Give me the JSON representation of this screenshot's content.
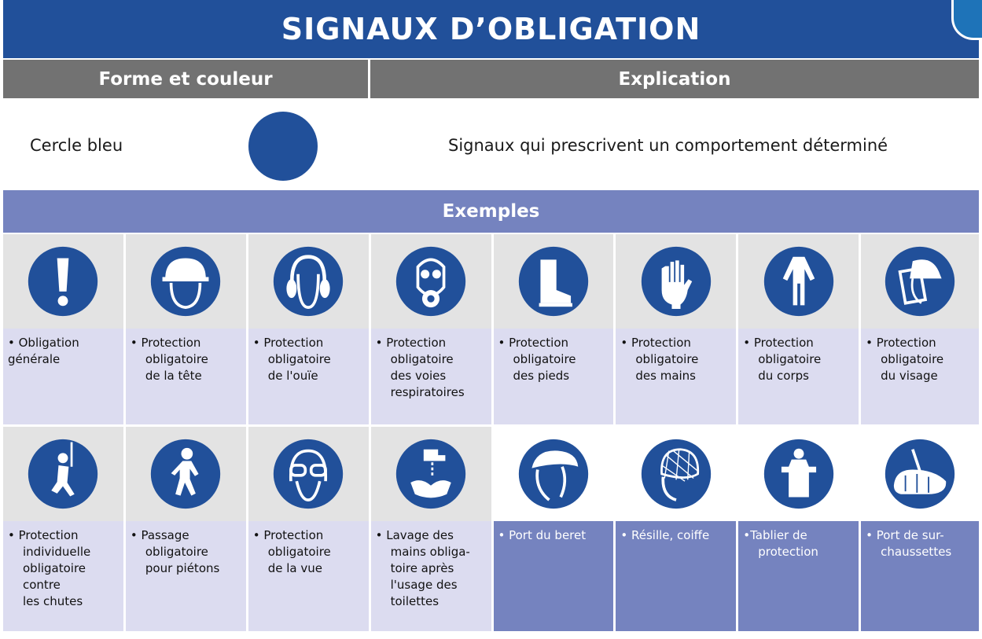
{
  "title": "SIGNAUX D’OBLIGATION",
  "headers": {
    "form": "Forme et couleur",
    "expl": "Explication"
  },
  "info": {
    "label": "Cercle bleu",
    "explanation": "Signaux qui prescrivent un comportement déterminé"
  },
  "examples_label": "Exemples",
  "colors": {
    "sign_blue": "#21509a",
    "header_gray": "#727272",
    "example_purple": "#7583bf",
    "text_lilac": "#dcdcf0"
  },
  "row1": [
    {
      "icon": "exclamation-icon",
      "lines": [
        "• Obligation",
        "générale"
      ]
    },
    {
      "icon": "hard-hat-icon",
      "lines": [
        "• Protection",
        "obligatoire",
        "de la tête"
      ]
    },
    {
      "icon": "ear-protection-icon",
      "lines": [
        "• Protection",
        "obligatoire",
        "de l'ouïe"
      ]
    },
    {
      "icon": "respirator-icon",
      "lines": [
        "• Protection",
        "obligatoire",
        "des voies",
        "respiratoires"
      ]
    },
    {
      "icon": "safety-boot-icon",
      "lines": [
        "• Protection",
        "obligatoire",
        "des pieds"
      ]
    },
    {
      "icon": "gloves-icon",
      "lines": [
        "• Protection",
        "obligatoire",
        "des mains"
      ]
    },
    {
      "icon": "coverall-icon",
      "lines": [
        "• Protection",
        "obligatoire",
        "du corps"
      ]
    },
    {
      "icon": "face-shield-icon",
      "lines": [
        "• Protection",
        "obligatoire",
        "du visage"
      ]
    }
  ],
  "row2": [
    {
      "icon": "fall-harness-icon",
      "lines": [
        "• Protection",
        "individuelle",
        "obligatoire",
        "contre",
        "les chutes"
      ]
    },
    {
      "icon": "pedestrian-icon",
      "lines": [
        "• Passage",
        "obligatoire",
        "pour piétons"
      ]
    },
    {
      "icon": "safety-goggles-icon",
      "lines": [
        "• Protection",
        "obligatoire",
        "de la vue"
      ]
    },
    {
      "icon": "hand-washing-icon",
      "lines": [
        "• Lavage des",
        "mains obliga-",
        "toire après",
        "l'usage des",
        "toilettes"
      ]
    },
    {
      "icon": "beret-icon",
      "lines": [
        "• Port du beret"
      ]
    },
    {
      "icon": "hairnet-icon",
      "lines": [
        "• Résille, coiffe"
      ]
    },
    {
      "icon": "apron-icon",
      "lines": [
        "•Tablier de",
        "protection"
      ]
    },
    {
      "icon": "shoe-cover-icon",
      "lines": [
        "• Port de sur-",
        "chaussettes"
      ]
    }
  ]
}
